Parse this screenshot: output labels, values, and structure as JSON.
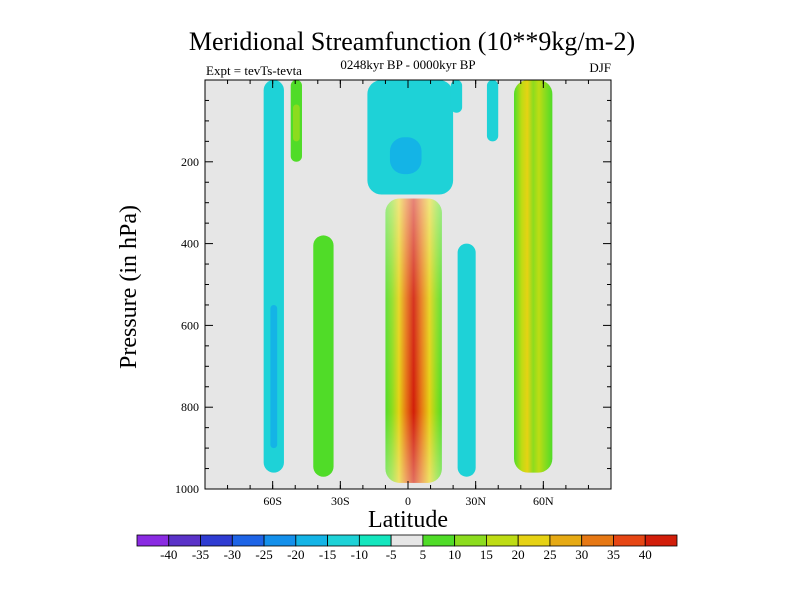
{
  "chart_data": {
    "type": "heatmap",
    "title": "Meridional Streamfunction (10**9kg/m-2)",
    "subtitle_left": "Expt = tevTs-tevta",
    "subtitle_center": "0248kyr BP - 0000kyr BP",
    "subtitle_right": "DJF",
    "xlabel": "Latitude",
    "ylabel": "Pressure (in hPa)",
    "xlim": [
      -90,
      90
    ],
    "ylim": [
      1000,
      0
    ],
    "x_ticks": [
      {
        "value": -60,
        "label": "60S"
      },
      {
        "value": -30,
        "label": "30S"
      },
      {
        "value": 0,
        "label": "0"
      },
      {
        "value": 30,
        "label": "30N"
      },
      {
        "value": 60,
        "label": "60N"
      }
    ],
    "y_ticks": [
      {
        "value": 200,
        "label": "200"
      },
      {
        "value": 400,
        "label": "400"
      },
      {
        "value": 600,
        "label": "600"
      },
      {
        "value": 800,
        "label": "800"
      },
      {
        "value": 1000,
        "label": "1000"
      }
    ],
    "contour_levels": [
      "-40",
      "-35",
      "-30",
      "-25",
      "-20",
      "-15",
      "-10",
      "-5",
      "5",
      "10",
      "15",
      "20",
      "25",
      "30",
      "35",
      "40"
    ],
    "colorbar_colors": [
      "#8a2be2",
      "#5a32c8",
      "#2f3cd2",
      "#1e64e6",
      "#1490eb",
      "#14b4e6",
      "#1ed2d7",
      "#14e6be",
      "#e6e6e6",
      "#50dc28",
      "#8cdc1e",
      "#bedc14",
      "#e6d214",
      "#e6aa14",
      "#e67814",
      "#e64614",
      "#d21e0a"
    ],
    "background_color": "#e6e6e6",
    "features": [
      {
        "name": "feature-60s-negative-column",
        "value": -5,
        "color": "#1ed2d7",
        "lat": [
          -64,
          -55
        ],
        "p": [
          0,
          960
        ]
      },
      {
        "name": "feature-60s-inner-core",
        "value": -10,
        "color": "#14b4e6",
        "lat": [
          -61,
          -58
        ],
        "p": [
          550,
          900
        ]
      },
      {
        "name": "feature-50s-upper-positive",
        "value": 5,
        "color": "#50dc28",
        "lat": [
          -52,
          -47
        ],
        "p": [
          0,
          200
        ]
      },
      {
        "name": "feature-50s-upper-core",
        "value": 10,
        "color": "#8cdc1e",
        "lat": [
          -51,
          -48
        ],
        "p": [
          60,
          150
        ]
      },
      {
        "name": "feature-38s-positive-column",
        "value": 5,
        "color": "#50dc28",
        "lat": [
          -42,
          -33
        ],
        "p": [
          380,
          970
        ]
      },
      {
        "name": "feature-upper-negative-cell",
        "value": -5,
        "color": "#1ed2d7",
        "lat": [
          -18,
          20
        ],
        "p": [
          0,
          280
        ]
      },
      {
        "name": "feature-upper-negative-core",
        "value": -10,
        "color": "#14b4e6",
        "lat": [
          -8,
          6
        ],
        "p": [
          140,
          230
        ]
      },
      {
        "name": "feature-equatorial-positive-cell",
        "value": 40,
        "color": "#d21e0a",
        "lat": [
          -10,
          15
        ],
        "p": [
          290,
          985
        ]
      },
      {
        "name": "feature-25n-negative-column",
        "value": -5,
        "color": "#1ed2d7",
        "lat": [
          22,
          30
        ],
        "p": [
          400,
          970
        ]
      },
      {
        "name": "feature-25n-upper-negative",
        "value": -5,
        "color": "#1ed2d7",
        "lat": [
          19,
          24
        ],
        "p": [
          0,
          80
        ]
      },
      {
        "name": "feature-38n-upper-negative",
        "value": -5,
        "color": "#1ed2d7",
        "lat": [
          35,
          40
        ],
        "p": [
          0,
          150
        ]
      },
      {
        "name": "feature-55n-positive-column",
        "value": 20,
        "color": "#bedc14",
        "lat": [
          47,
          64
        ],
        "p": [
          0,
          960
        ]
      }
    ]
  }
}
